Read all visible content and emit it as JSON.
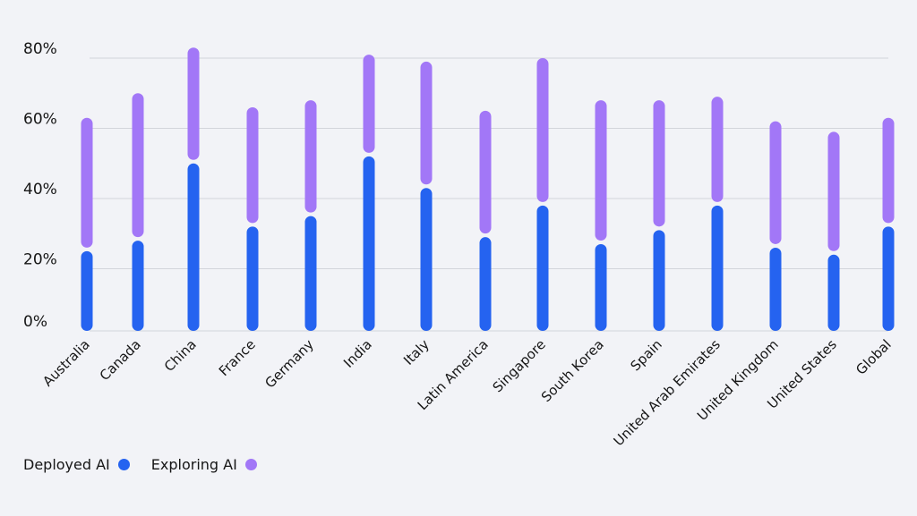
{
  "chart_data": {
    "type": "bar",
    "stacked": true,
    "categories": [
      "Australia",
      "Canada",
      "China",
      "France",
      "Germany",
      "India",
      "Italy",
      "Latin America",
      "Singapore",
      "South Korea",
      "Spain",
      "United Arab Emirates",
      "United Kingdom",
      "United States",
      "Global"
    ],
    "series": [
      {
        "name": "Deployed AI",
        "color": "#2563f0",
        "values": [
          25,
          28,
          50,
          32,
          35,
          52,
          43,
          29,
          38,
          27,
          31,
          38,
          26,
          24,
          32
        ]
      },
      {
        "name": "Exploring AI",
        "color": "#a277f7",
        "values": [
          38,
          42,
          33,
          34,
          33,
          29,
          36,
          36,
          42,
          41,
          37,
          31,
          36,
          35,
          31
        ]
      }
    ],
    "yticks": [
      "0%",
      "20%",
      "40%",
      "60%",
      "80%"
    ],
    "ytick_values": [
      0,
      20,
      40,
      60,
      80
    ],
    "ylim": [
      0,
      85
    ],
    "grid": true,
    "legend_position": "bottom-left"
  },
  "legend": {
    "items": [
      "Deployed AI",
      "Exploring AI"
    ]
  }
}
